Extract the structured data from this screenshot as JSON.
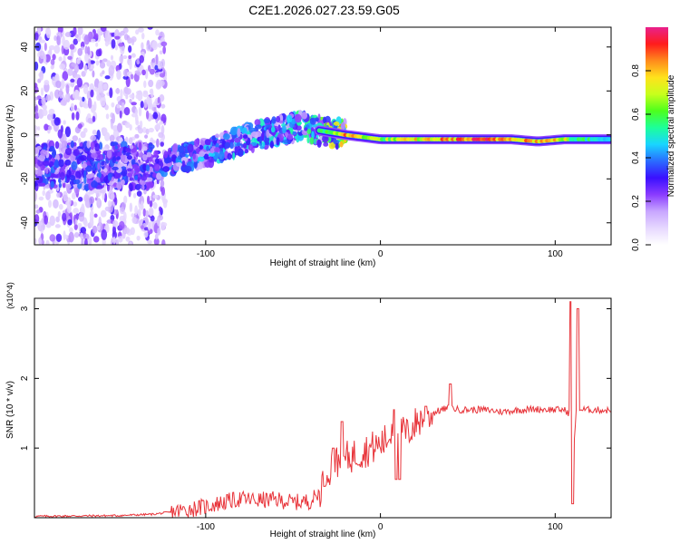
{
  "page": {
    "title": "C2E1.2026.027.23.59.G05"
  },
  "colors": {
    "snr_line": "#e8343a",
    "colormap": [
      "#ffffff",
      "#e6d8ff",
      "#c8a6ff",
      "#8a3bff",
      "#3a10ff",
      "#2a6cff",
      "#19d5ff",
      "#1cff9a",
      "#4dff1c",
      "#c8ff1c",
      "#ffe21c",
      "#ff8a1c",
      "#ff1c1c",
      "#e9218c"
    ]
  },
  "chart_data": [
    {
      "type": "heatmap",
      "title": "C2E1.2026.027.23.59.G05",
      "xlabel": "Height of straight line (km)",
      "ylabel": "Frequency (Hz)",
      "xlim": [
        -198,
        132
      ],
      "ylim": [
        -50,
        49
      ],
      "xticks": [
        -100,
        0,
        100
      ],
      "xtick_labels": [
        "-100",
        "0",
        "100"
      ],
      "yticks": [
        -40,
        -20,
        0,
        20,
        40
      ],
      "ytick_labels": [
        "-40",
        "-20",
        "0",
        "20",
        "40"
      ],
      "colorbar": {
        "label": "Normalized spectral amplitude",
        "range": [
          0,
          1
        ],
        "ticks": [
          0.0,
          0.2,
          0.4,
          0.6,
          0.8
        ],
        "tick_labels": [
          "0.0",
          "0.2",
          "0.4",
          "0.6",
          "0.8"
        ]
      },
      "ridge": {
        "description": "dominant frequency track",
        "x": [
          -130,
          -100,
          -70,
          -45,
          -35,
          -20,
          0,
          50,
          75,
          90,
          105,
          110,
          132
        ],
        "y": [
          -14,
          -8,
          0,
          4,
          2,
          0,
          -2,
          -2,
          -2,
          -3,
          -2,
          -2,
          -2
        ],
        "amplitude": [
          0.3,
          0.4,
          0.45,
          0.5,
          0.55,
          0.9,
          0.7,
          0.95,
          0.95,
          0.9,
          0.8,
          0.6,
          0.55
        ]
      }
    },
    {
      "type": "line",
      "xlabel": "Height of straight line (km)",
      "ylabel": "SNR (10 * v/v)",
      "y_multiplier": "(x10^4)",
      "xlim": [
        -198,
        132
      ],
      "ylim": [
        0,
        3.15
      ],
      "xticks": [
        -100,
        0,
        100
      ],
      "xtick_labels": [
        "-100",
        "0",
        "100"
      ],
      "yticks": [
        1,
        2,
        3
      ],
      "ytick_labels": [
        "1",
        "2",
        "3"
      ],
      "series": [
        {
          "name": "SNR",
          "x": [
            -198,
            -150,
            -130,
            -120,
            -110,
            -100,
            -90,
            -80,
            -70,
            -60,
            -50,
            -40,
            -35,
            -33,
            -30,
            -27,
            -25,
            -20,
            -15,
            -10,
            -5,
            0,
            5,
            8,
            10,
            12,
            15,
            20,
            25,
            30,
            35,
            40,
            45,
            50,
            60,
            70,
            80,
            90,
            100,
            105,
            108,
            110,
            112,
            114,
            116,
            120,
            132
          ],
          "y": [
            0.02,
            0.03,
            0.05,
            0.08,
            0.12,
            0.16,
            0.22,
            0.27,
            0.25,
            0.26,
            0.22,
            0.24,
            0.35,
            0.55,
            0.7,
            0.75,
            0.8,
            0.85,
            0.9,
            0.95,
            1.0,
            1.05,
            1.15,
            1.45,
            1.0,
            1.3,
            1.2,
            1.35,
            1.45,
            1.5,
            1.55,
            1.58,
            1.55,
            1.55,
            1.55,
            1.52,
            1.55,
            1.56,
            1.55,
            1.55,
            1.5,
            0.8,
            1.5,
            1.55,
            1.55,
            1.55,
            1.54
          ]
        }
      ],
      "spikes": [
        {
          "x": -32,
          "y": 0.45
        },
        {
          "x": -27,
          "y": 1.0
        },
        {
          "x": -22,
          "y": 1.38
        },
        {
          "x": 8,
          "y": 1.55
        },
        {
          "x": 26,
          "y": 1.6
        },
        {
          "x": 40,
          "y": 1.92
        },
        {
          "x": 109,
          "y": 3.1
        },
        {
          "x": 113,
          "y": 3.0
        }
      ],
      "dips": [
        {
          "x": 9,
          "y": 0.55
        },
        {
          "x": 11,
          "y": 0.55
        },
        {
          "x": 110,
          "y": 0.2
        }
      ]
    }
  ]
}
